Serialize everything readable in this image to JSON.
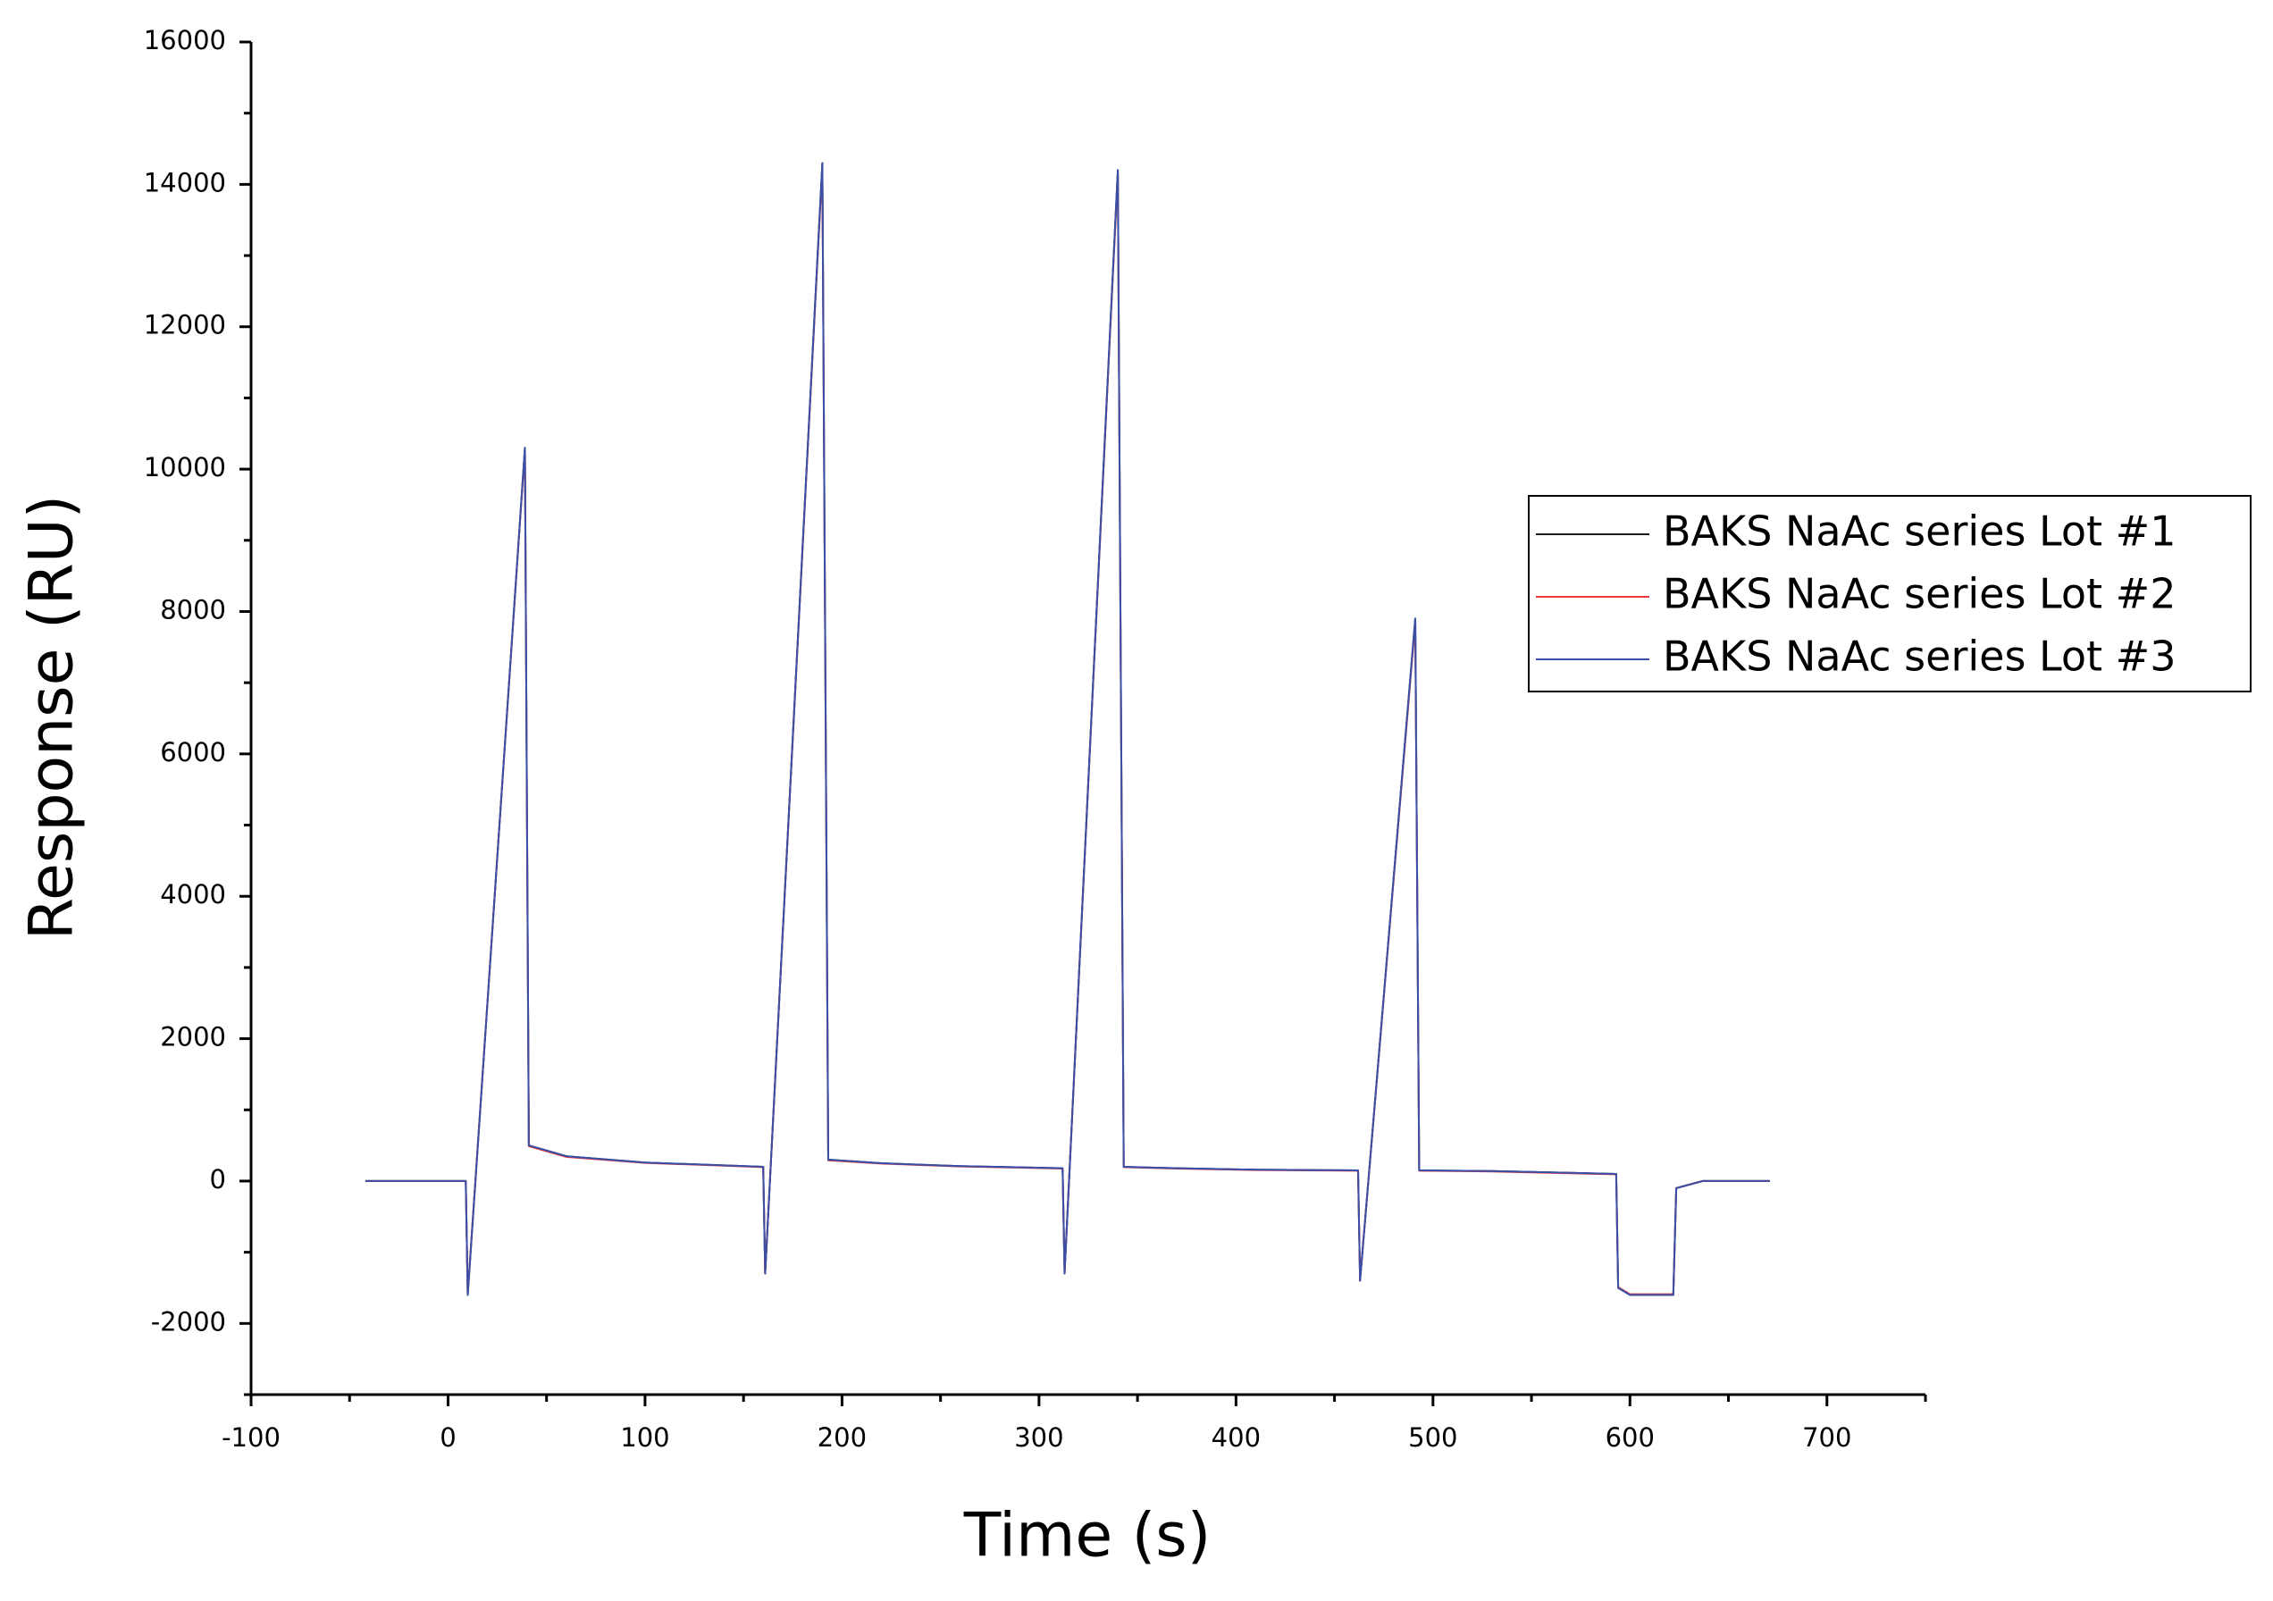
{
  "chart_data": {
    "type": "line",
    "x_label": "Time (s)",
    "y_label": "Response (RU)",
    "x": [
      -42,
      9,
      10,
      39,
      41,
      60,
      100,
      160,
      161,
      190,
      193,
      220,
      260,
      312,
      313,
      340,
      343,
      370,
      410,
      462,
      463,
      491,
      493,
      530,
      593,
      594,
      600,
      622,
      623.5,
      637,
      671
    ],
    "series": [
      {
        "name": "BAKS NaAc series Lot #1",
        "color": "#1a1a1a",
        "values": [
          0,
          0,
          -1600,
          10300,
          500,
          350,
          260,
          200,
          -1300,
          14300,
          300,
          250,
          210,
          180,
          -1300,
          14200,
          200,
          180,
          160,
          150,
          -1400,
          7900,
          150,
          140,
          100,
          -1500,
          -1600,
          -1600,
          -100,
          0,
          0
        ]
      },
      {
        "name": "BAKS NaAc series Lot #2",
        "color": "#e8393a",
        "values": [
          0,
          0,
          -1580,
          10280,
          490,
          340,
          255,
          195,
          -1290,
          14250,
          290,
          245,
          205,
          175,
          -1290,
          14150,
          195,
          175,
          155,
          145,
          -1390,
          7850,
          145,
          135,
          95,
          -1490,
          -1590,
          -1590,
          -100,
          0,
          0
        ]
      },
      {
        "name": "BAKS NaAc series Lot #3",
        "color": "#3a4fa8",
        "values": [
          0,
          0,
          -1600,
          10300,
          500,
          350,
          260,
          200,
          -1300,
          14300,
          300,
          250,
          210,
          180,
          -1300,
          14200,
          200,
          180,
          160,
          150,
          -1400,
          7900,
          150,
          140,
          100,
          -1500,
          -1600,
          -1600,
          -100,
          0,
          0
        ]
      }
    ],
    "xlim": [
      -100,
      750
    ],
    "xticks": [
      -100,
      0,
      100,
      200,
      300,
      400,
      500,
      600,
      700
    ],
    "ylim": [
      -3000,
      16000
    ],
    "yticks": [
      -2000,
      0,
      2000,
      4000,
      6000,
      8000,
      10000,
      12000,
      14000,
      16000
    ],
    "grid": false,
    "legend": "right"
  }
}
